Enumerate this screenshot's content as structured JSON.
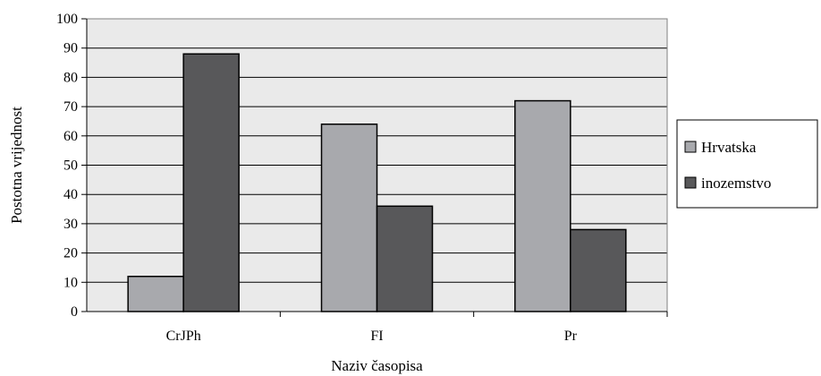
{
  "chart_data": {
    "type": "bar",
    "title": "",
    "xlabel": "Naziv časopisa",
    "ylabel": "Postotna vrijednost",
    "categories": [
      "CrJPh",
      "FI",
      "Pr"
    ],
    "series": [
      {
        "name": "Hrvatska",
        "values": [
          12,
          64,
          72
        ]
      },
      {
        "name": "inozemstvo",
        "values": [
          88,
          36,
          28
        ]
      }
    ],
    "ylim": [
      0,
      100
    ],
    "yticks": [
      0,
      10,
      20,
      30,
      40,
      50,
      60,
      70,
      80,
      90,
      100
    ],
    "grid": true,
    "legend_position": "right",
    "colors": {
      "plot_background": "#eaeaea",
      "gridline": "#000000",
      "series": [
        "#a8a9ad",
        "#58585a"
      ]
    }
  }
}
